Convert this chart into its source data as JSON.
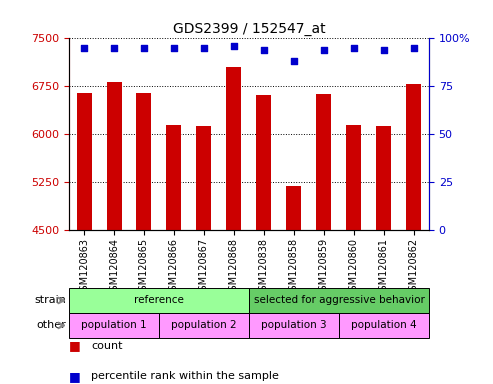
{
  "title": "GDS2399 / 152547_at",
  "samples": [
    "GSM120863",
    "GSM120864",
    "GSM120865",
    "GSM120866",
    "GSM120867",
    "GSM120868",
    "GSM120838",
    "GSM120858",
    "GSM120859",
    "GSM120860",
    "GSM120861",
    "GSM120862"
  ],
  "bar_values": [
    6650,
    6820,
    6650,
    6150,
    6130,
    7050,
    6620,
    5200,
    6630,
    6150,
    6130,
    6790
  ],
  "percentile_values": [
    95,
    95,
    95,
    95,
    95,
    96,
    94,
    88,
    94,
    95,
    94,
    95
  ],
  "ylim": [
    4500,
    7500
  ],
  "yticks": [
    4500,
    5250,
    6000,
    6750,
    7500
  ],
  "right_yticks": [
    0,
    25,
    50,
    75,
    100
  ],
  "bar_color": "#cc0000",
  "dot_color": "#0000cc",
  "plot_bg_color": "#ffffff",
  "grid_color": "#000000",
  "strain_groups": [
    {
      "label": "reference",
      "start": 0,
      "end": 5,
      "color": "#99ff99"
    },
    {
      "label": "selected for aggressive behavior",
      "start": 6,
      "end": 11,
      "color": "#66cc66"
    }
  ],
  "other_groups": [
    {
      "label": "population 1",
      "start": 0,
      "end": 2,
      "color": "#ff99ff"
    },
    {
      "label": "population 2",
      "start": 3,
      "end": 5,
      "color": "#ff99ff"
    },
    {
      "label": "population 3",
      "start": 6,
      "end": 8,
      "color": "#ff99ff"
    },
    {
      "label": "population 4",
      "start": 9,
      "end": 11,
      "color": "#ff99ff"
    }
  ],
  "left_axis_color": "#cc0000",
  "right_axis_color": "#0000cc"
}
